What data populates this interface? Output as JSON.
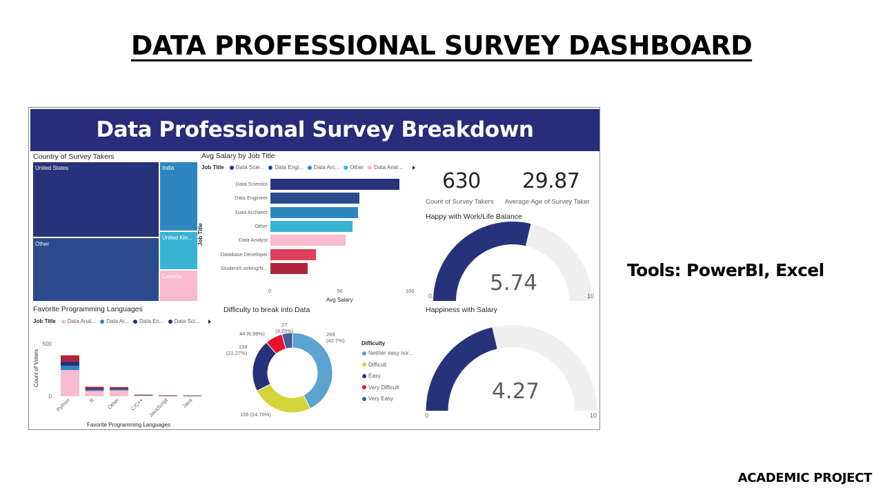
{
  "slide": {
    "title": "DATA PROFESSIONAL SURVEY DASHBOARD",
    "tools": "Tools: PowerBI, Excel",
    "footer": "ACADEMIC PROJECT"
  },
  "dashboard": {
    "banner_title": "Data Professional Survey Breakdown",
    "colors": {
      "banner": "#272d7a",
      "navy": "#26327a",
      "navy_light": "#2a4a8c",
      "blue": "#2e86c1",
      "cyan": "#39b3d4",
      "pink": "#f8bbcf",
      "red": "#de3f5a",
      "darkred": "#b0243a",
      "gauge_bg": "#efefef"
    },
    "treemap": {
      "title": "Country of Survey Takers",
      "tiles": [
        {
          "label": "United States"
        },
        {
          "label": "Other"
        },
        {
          "label": "India"
        },
        {
          "label": "United Kin..."
        },
        {
          "label": "Canada"
        }
      ]
    },
    "salary": {
      "title": "Avg Salary by Job Title",
      "legend_title": "Job Title",
      "legend": [
        "Data Scie...",
        "Data Engi...",
        "Data Arc...",
        "Other",
        "Data Anal..."
      ],
      "axis_title_y": "Job Title",
      "axis_title_x": "Avg Salary"
    },
    "languages": {
      "title": "Favorite Programming Languages",
      "legend_title": "Job Title",
      "legend": [
        "Data Anal...",
        "Data Ar...",
        "Data En...",
        "Data Sci..."
      ],
      "axis_title_y": "Count of Voters",
      "axis_title_x": "Favorite Programming Languages"
    },
    "difficulty": {
      "title": "Difficulty to break into Data",
      "legend_title": "Difficulty",
      "legend": [
        "Neither easy nor...",
        "Difficult",
        "Easy",
        "Very Difficult",
        "Very Easy"
      ],
      "labels": {
        "neither_value": "269",
        "neither_pct": "(42.7%)",
        "difficult": "156 (24.76%)",
        "easy_value": "134",
        "easy_pct": "(21.27%)",
        "very_difficult": "44 (6.98%)",
        "very_easy_value": "27",
        "very_easy_pct": "(4.29%)"
      }
    },
    "kpis": {
      "count_value": "630",
      "count_label": "Count of Survey Takers",
      "age_value": "29.87",
      "age_label": "Average Age of Survey Taker"
    },
    "gauges": {
      "worklife_title": "Happy with Work/Life Balance",
      "worklife_value": "5.74",
      "worklife_min": "0",
      "worklife_max": "10",
      "salary_title": "Happiness with Salary",
      "salary_value": "4.27",
      "salary_min": "0",
      "salary_max": "10"
    }
  },
  "chart_data": [
    {
      "type": "bar",
      "orientation": "horizontal",
      "title": "Avg Salary by Job Title",
      "categories": [
        "Data Scientist",
        "Data Engineer",
        "Data Architect",
        "Other",
        "Data Analyst",
        "Database Developer",
        "Student/Looking/N..."
      ],
      "values": [
        94,
        65,
        64,
        60,
        55,
        33,
        27
      ],
      "colors": [
        "#26327a",
        "#2a4a8c",
        "#2e86c1",
        "#39b3d4",
        "#f8bbcf",
        "#de3f5a",
        "#b0243a"
      ],
      "xlabel": "Avg Salary",
      "ylabel": "Job Title",
      "xlim": [
        0,
        100
      ],
      "xticks": [
        "0",
        "50",
        "100"
      ]
    },
    {
      "type": "bar",
      "stacked": true,
      "title": "Favorite Programming Languages",
      "categories": [
        "Python",
        "R",
        "Other",
        "C/C++",
        "JavaScript",
        "Java"
      ],
      "series": [
        {
          "name": "Data Anal...",
          "color": "#f8bbcf",
          "values": [
            250,
            50,
            55,
            8,
            4,
            3
          ]
        },
        {
          "name": "Data Ar...",
          "color": "#2e86c1",
          "values": [
            40,
            12,
            9,
            2,
            1,
            1
          ]
        },
        {
          "name": "Data En...",
          "color": "#26327a",
          "values": [
            40,
            10,
            8,
            2,
            1,
            1
          ]
        },
        {
          "name": "Data Sci...",
          "color": "#b0243a",
          "values": [
            60,
            18,
            15,
            3,
            2,
            1
          ]
        }
      ],
      "ylabel": "Count of Voters",
      "xlabel": "Favorite Programming Languages",
      "ylim": [
        0,
        500
      ],
      "yticks": [
        "0",
        "500"
      ]
    },
    {
      "type": "pie",
      "donut": true,
      "title": "Difficulty to break into Data",
      "categories": [
        "Neither easy nor...",
        "Difficult",
        "Easy",
        "Very Difficult",
        "Very Easy"
      ],
      "values": [
        269,
        156,
        134,
        44,
        27
      ],
      "colors": [
        "#5ba3d0",
        "#d2d63a",
        "#26327a",
        "#e8112d",
        "#4a5a9a"
      ]
    },
    {
      "type": "gauge",
      "title": "Happy with Work/Life Balance",
      "value": 5.74,
      "min": 0,
      "max": 10
    },
    {
      "type": "gauge",
      "title": "Happiness with Salary",
      "value": 4.27,
      "min": 0,
      "max": 10
    }
  ]
}
